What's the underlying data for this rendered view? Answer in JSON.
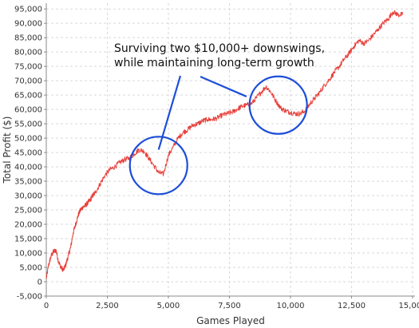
{
  "colors": {
    "series": "#e8403b",
    "annotation": "#1d4ed8",
    "grid": "#d9d9d9",
    "axis": "#888888",
    "background": "#ffffff"
  },
  "chart_data": {
    "type": "line",
    "title": "",
    "xlabel": "Games Played",
    "ylabel": "Total Profit ($)",
    "xlim": [
      0,
      15100
    ],
    "ylim": [
      -5000,
      97000
    ],
    "grid": true,
    "legend": "none",
    "x_ticks": [
      0,
      2500,
      5000,
      7500,
      10000,
      12500,
      15000
    ],
    "x_tick_labels": [
      "0",
      "2,500",
      "5,000",
      "7,500",
      "10,000",
      "12,500",
      "15,000"
    ],
    "y_ticks": [
      -5000,
      0,
      5000,
      10000,
      15000,
      20000,
      25000,
      30000,
      35000,
      40000,
      45000,
      50000,
      55000,
      60000,
      65000,
      70000,
      75000,
      80000,
      85000,
      90000,
      95000
    ],
    "y_tick_labels": [
      "-5,000",
      "0",
      "5,000",
      "10,000",
      "15,000",
      "20,000",
      "25,000",
      "30,000",
      "35,000",
      "40,000",
      "45,000",
      "50,000",
      "55,000",
      "60,000",
      "65,000",
      "70,000",
      "75,000",
      "80,000",
      "85,000",
      "90,000",
      "95,000"
    ],
    "series": [
      {
        "x": [
          0,
          100,
          200,
          300,
          400,
          500,
          600,
          700,
          800,
          900,
          1000,
          1100,
          1200,
          1300,
          1400,
          1500,
          1600,
          1700,
          1800,
          1900,
          2000,
          2200,
          2400,
          2600,
          2800,
          3000,
          3200,
          3400,
          3600,
          3800,
          4000,
          4200,
          4400,
          4600,
          4800,
          5000,
          5200,
          5400,
          5600,
          5800,
          6000,
          6200,
          6400,
          6600,
          6800,
          7000,
          7200,
          7400,
          7600,
          7800,
          8000,
          8200,
          8400,
          8600,
          8800,
          9000,
          9200,
          9400,
          9600,
          9800,
          10000,
          10200,
          10400,
          10600,
          10800,
          11000,
          11200,
          11400,
          11600,
          11800,
          12000,
          12200,
          12400,
          12600,
          12800,
          13000,
          13200,
          13400,
          13600,
          13800,
          14000,
          14200,
          14400,
          14600
        ],
        "y": [
          1000,
          6000,
          9000,
          10500,
          11000,
          7000,
          5000,
          4000,
          6000,
          9000,
          12000,
          17000,
          20000,
          23000,
          25000,
          26000,
          26500,
          27500,
          28500,
          30000,
          31000,
          34000,
          37000,
          39000,
          40000,
          41500,
          42500,
          43000,
          44500,
          46000,
          45500,
          43000,
          40500,
          38000,
          37500,
          44000,
          47000,
          50000,
          52000,
          53000,
          54500,
          55000,
          56000,
          56500,
          56500,
          57000,
          58000,
          58500,
          59000,
          60000,
          61000,
          61500,
          62000,
          64000,
          66000,
          68000,
          66000,
          63000,
          60500,
          59500,
          59000,
          58500,
          58500,
          59500,
          62000,
          64000,
          66000,
          68500,
          70500,
          73000,
          75000,
          77500,
          79500,
          82000,
          84000,
          83000,
          84000,
          86000,
          88000,
          90000,
          91500,
          94000,
          93000,
          93000
        ]
      }
    ],
    "annotation": {
      "text_lines": [
        "Surviving two $10,000+ downswings,",
        "while maintaining long-term growth"
      ],
      "circles": [
        {
          "cx": 4600,
          "cy": 40500
        },
        {
          "cx": 9500,
          "cy": 61500
        }
      ],
      "pointer_targets": [
        {
          "x": 4600,
          "y": 46000
        },
        {
          "x": 8200,
          "y": 64500
        }
      ]
    }
  }
}
